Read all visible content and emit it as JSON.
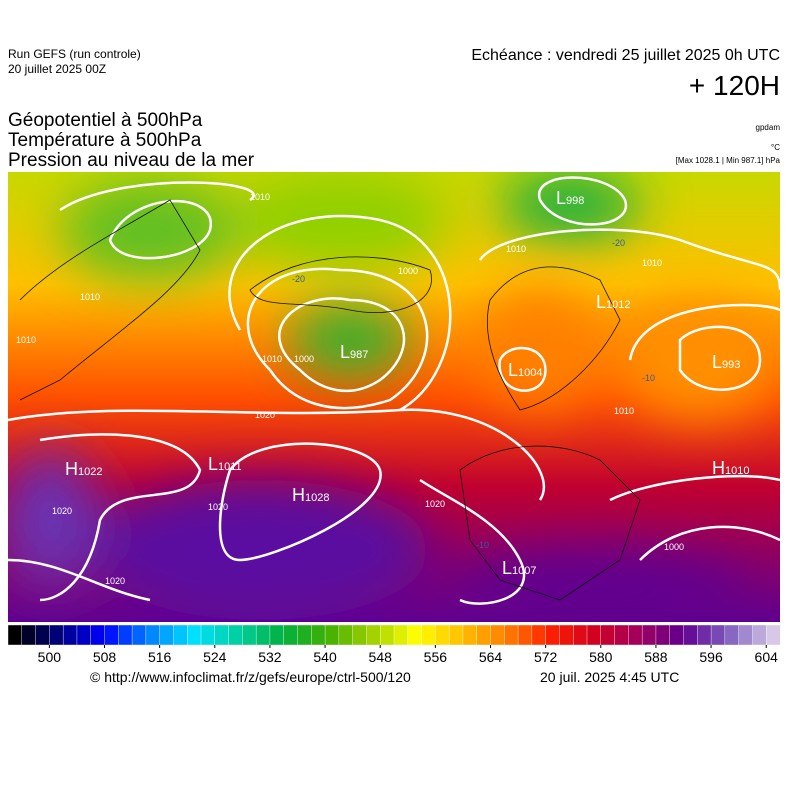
{
  "header": {
    "run": "Run GEFS (run controle)",
    "run_date": "20 juillet 2025 00Z",
    "echeance": "Echéance : vendredi 25 juillet 2025 0h UTC",
    "lead": "+ 120H",
    "fields": [
      "Géopotentiel à 500hPa",
      "Température à 500hPa",
      "Pression au niveau de la mer"
    ],
    "units_geo": "gpdam",
    "units_temp": "°C",
    "units_press": "[Max 1028.1 | Min 987.1] hPa"
  },
  "map": {
    "systems": [
      {
        "letter": "H",
        "value": "1022"
      },
      {
        "letter": "L",
        "value": "1011"
      },
      {
        "letter": "H",
        "value": "1028"
      },
      {
        "letter": "L",
        "value": "1007"
      },
      {
        "letter": "L",
        "value": "987"
      },
      {
        "letter": "L",
        "value": "1004"
      },
      {
        "letter": "L",
        "value": "998"
      },
      {
        "letter": "L",
        "value": "993"
      },
      {
        "letter": "L",
        "value": "1012"
      },
      {
        "letter": "H",
        "value": "1010"
      }
    ],
    "isobar_labels": [
      "1010",
      "1010",
      "1010",
      "1000",
      "1010",
      "1000",
      "1020",
      "1020",
      "1020",
      "1020",
      "1020",
      "1010",
      "1010",
      "1010",
      "1000"
    ],
    "isotherm_labels": [
      "-20",
      "-20",
      "-10",
      "-10"
    ]
  },
  "colorbar": {
    "range": [
      494,
      606
    ],
    "ticks": [
      500,
      508,
      516,
      524,
      532,
      540,
      548,
      556,
      564,
      572,
      580,
      588,
      596,
      604
    ],
    "stops": [
      "#000000",
      "#000080",
      "#0000ff",
      "#0080ff",
      "#00e0ff",
      "#00d0a0",
      "#00b040",
      "#40b000",
      "#a0d000",
      "#ffff00",
      "#ffc000",
      "#ff8000",
      "#ff2000",
      "#d00020",
      "#a00060",
      "#600090",
      "#8060c0",
      "#d8c8e8"
    ]
  },
  "footer": {
    "url": "© http://www.infoclimat.fr/z/gefs/europe/ctrl-500/120",
    "date": "20 juil. 2025  4:45 UTC"
  }
}
